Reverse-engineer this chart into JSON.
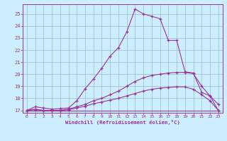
{
  "xlabel": "Windchill (Refroidissement éolien,°C)",
  "background_color": "#cceeff",
  "line_color": "#993399",
  "grid_color": "#99bbcc",
  "x_ticks": [
    0,
    1,
    2,
    3,
    4,
    5,
    6,
    7,
    8,
    9,
    10,
    11,
    12,
    13,
    14,
    15,
    16,
    17,
    18,
    19,
    20,
    21,
    22,
    23
  ],
  "y_ticks": [
    17,
    18,
    19,
    20,
    21,
    22,
    23,
    24,
    25
  ],
  "xlim": [
    -0.5,
    23.5
  ],
  "ylim": [
    16.8,
    25.8
  ],
  "line1_x": [
    0,
    1,
    2,
    3,
    4,
    5,
    6,
    7,
    8,
    9,
    10,
    11,
    12,
    13,
    14,
    15,
    16,
    17,
    18,
    19,
    20,
    21,
    22,
    23
  ],
  "line1_y": [
    17.0,
    17.3,
    17.2,
    17.1,
    17.15,
    17.2,
    17.8,
    18.8,
    19.6,
    20.5,
    21.5,
    22.2,
    23.5,
    25.4,
    25.0,
    24.8,
    24.6,
    22.8,
    22.8,
    20.2,
    20.1,
    18.5,
    18.2,
    17.5
  ],
  "line2_x": [
    0,
    1,
    2,
    3,
    4,
    5,
    6,
    7,
    8,
    9,
    10,
    11,
    12,
    13,
    14,
    15,
    16,
    17,
    18,
    19,
    20,
    21,
    22,
    23
  ],
  "line2_y": [
    17.0,
    17.1,
    17.0,
    17.0,
    17.0,
    17.1,
    17.3,
    17.5,
    17.8,
    18.0,
    18.3,
    18.6,
    19.0,
    19.4,
    19.7,
    19.9,
    20.0,
    20.1,
    20.15,
    20.15,
    20.05,
    19.0,
    18.2,
    17.0
  ],
  "line3_x": [
    0,
    1,
    2,
    3,
    4,
    5,
    6,
    7,
    8,
    9,
    10,
    11,
    12,
    13,
    14,
    15,
    16,
    17,
    18,
    19,
    20,
    21,
    22,
    23
  ],
  "line3_y": [
    17.0,
    17.05,
    17.0,
    17.0,
    17.0,
    17.05,
    17.2,
    17.35,
    17.55,
    17.7,
    17.85,
    18.0,
    18.2,
    18.4,
    18.6,
    18.75,
    18.85,
    18.9,
    18.95,
    18.95,
    18.75,
    18.3,
    17.8,
    17.0
  ],
  "line4_x": [
    0,
    1,
    2,
    3,
    4,
    5,
    6,
    7,
    8,
    9,
    10,
    11,
    12,
    13,
    14,
    15,
    16,
    17,
    18,
    19,
    20,
    21,
    22,
    23
  ],
  "line4_y": [
    17.0,
    17.0,
    17.0,
    17.0,
    17.0,
    17.0,
    17.0,
    17.0,
    17.0,
    17.0,
    17.0,
    17.0,
    17.0,
    17.0,
    17.0,
    17.0,
    17.0,
    17.0,
    17.0,
    17.0,
    17.0,
    17.0,
    17.0,
    17.0
  ]
}
